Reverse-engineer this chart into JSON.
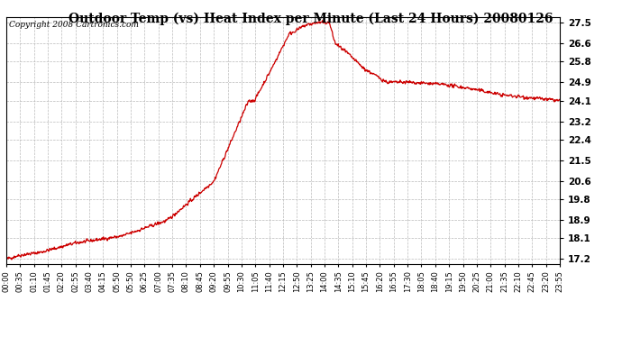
{
  "title": "Outdoor Temp (vs) Heat Index per Minute (Last 24 Hours) 20080126",
  "copyright": "Copyright 2008 Cartronics.com",
  "line_color": "#cc0000",
  "bg_color": "#ffffff",
  "plot_bg_color": "#ffffff",
  "grid_color": "#bbbbbb",
  "yticks": [
    17.2,
    18.1,
    18.9,
    19.8,
    20.6,
    21.5,
    22.4,
    23.2,
    24.1,
    24.9,
    25.8,
    26.6,
    27.5
  ],
  "ylim": [
    17.0,
    27.75
  ],
  "xtick_labels": [
    "00:00",
    "00:35",
    "01:10",
    "01:45",
    "02:20",
    "02:55",
    "03:40",
    "04:15",
    "05:50",
    "05:50",
    "06:25",
    "07:00",
    "07:35",
    "08:10",
    "08:45",
    "09:20",
    "09:55",
    "10:30",
    "11:05",
    "11:40",
    "12:15",
    "12:50",
    "13:25",
    "14:00",
    "14:35",
    "15:10",
    "15:45",
    "16:20",
    "16:55",
    "17:30",
    "18:05",
    "18:40",
    "19:15",
    "19:50",
    "20:25",
    "21:00",
    "21:35",
    "22:10",
    "22:45",
    "23:20",
    "23:55"
  ],
  "title_fontsize": 10,
  "copyright_fontsize": 6.5,
  "tick_fontsize": 6,
  "ytick_fontsize": 7.5
}
